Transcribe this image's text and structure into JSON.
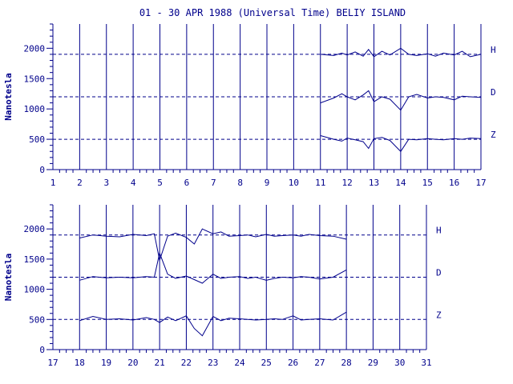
{
  "colors": {
    "ink": "#00008b",
    "background": "#ffffff"
  },
  "chart_data": [
    {
      "type": "line",
      "title": "01 - 30 APR 1988 (Universal Time) BELIY ISLAND",
      "xlabel": "",
      "ylabel": "Nanotesla",
      "xlim": [
        1,
        17
      ],
      "ylim": [
        0,
        2400
      ],
      "x_ticks": [
        1,
        2,
        3,
        4,
        5,
        6,
        7,
        8,
        9,
        10,
        11,
        12,
        13,
        14,
        15,
        16,
        17
      ],
      "y_ticks": [
        0,
        500,
        1000,
        1500,
        2000
      ],
      "grid": "vertical lines at each day",
      "baselines": [
        {
          "name": "H",
          "value": 1900
        },
        {
          "name": "D",
          "value": 1200
        },
        {
          "name": "Z",
          "value": 500
        }
      ],
      "series": [
        {
          "name": "H",
          "x": [
            11.0,
            11.5,
            11.8,
            12.0,
            12.3,
            12.6,
            12.8,
            13.0,
            13.3,
            13.6,
            14.0,
            14.3,
            14.6,
            15.0,
            15.3,
            15.6,
            16.0,
            16.3,
            16.6,
            17.0
          ],
          "values": [
            1900,
            1880,
            1920,
            1890,
            1940,
            1870,
            1980,
            1860,
            1950,
            1890,
            2000,
            1900,
            1880,
            1910,
            1870,
            1920,
            1890,
            1950,
            1860,
            1900
          ]
        },
        {
          "name": "D",
          "x": [
            11.0,
            11.5,
            11.8,
            12.0,
            12.3,
            12.6,
            12.8,
            13.0,
            13.3,
            13.6,
            14.0,
            14.3,
            14.6,
            15.0,
            15.3,
            15.6,
            16.0,
            16.3,
            16.6,
            17.0
          ],
          "values": [
            1100,
            1180,
            1250,
            1200,
            1150,
            1230,
            1300,
            1120,
            1200,
            1160,
            980,
            1200,
            1240,
            1180,
            1200,
            1190,
            1150,
            1210,
            1200,
            1190
          ]
        },
        {
          "name": "Z",
          "x": [
            11.0,
            11.5,
            11.8,
            12.0,
            12.3,
            12.6,
            12.8,
            13.0,
            13.3,
            13.6,
            14.0,
            14.3,
            14.6,
            15.0,
            15.3,
            15.6,
            16.0,
            16.3,
            16.6,
            17.0
          ],
          "values": [
            560,
            500,
            470,
            520,
            490,
            460,
            350,
            510,
            530,
            480,
            300,
            500,
            490,
            510,
            500,
            490,
            510,
            500,
            520,
            510
          ]
        }
      ]
    },
    {
      "type": "line",
      "title": "",
      "xlabel": "",
      "ylabel": "Nanotesla",
      "xlim": [
        17,
        31
      ],
      "ylim": [
        0,
        2400
      ],
      "x_ticks": [
        17,
        18,
        19,
        20,
        21,
        22,
        23,
        24,
        25,
        26,
        27,
        28,
        29,
        30,
        31
      ],
      "y_ticks": [
        0,
        500,
        1000,
        1500,
        2000
      ],
      "grid": "vertical lines at each day",
      "baselines": [
        {
          "name": "H",
          "value": 1900
        },
        {
          "name": "D",
          "value": 1200
        },
        {
          "name": "Z",
          "value": 500
        }
      ],
      "series": [
        {
          "name": "H",
          "x": [
            18.0,
            18.5,
            19.0,
            19.5,
            20.0,
            20.5,
            20.8,
            21.0,
            21.3,
            21.6,
            22.0,
            22.3,
            22.6,
            23.0,
            23.3,
            23.6,
            24.0,
            24.3,
            24.6,
            25.0,
            25.3,
            25.6,
            26.0,
            26.3,
            26.6,
            27.0,
            27.5,
            28.0
          ],
          "values": [
            1850,
            1900,
            1880,
            1870,
            1910,
            1890,
            1920,
            1480,
            1880,
            1930,
            1860,
            1750,
            2000,
            1920,
            1950,
            1880,
            1890,
            1900,
            1870,
            1910,
            1880,
            1890,
            1900,
            1880,
            1910,
            1890,
            1880,
            1830
          ]
        },
        {
          "name": "D",
          "x": [
            18.0,
            18.5,
            19.0,
            19.5,
            20.0,
            20.5,
            20.8,
            21.0,
            21.3,
            21.6,
            22.0,
            22.3,
            22.6,
            23.0,
            23.3,
            23.6,
            24.0,
            24.3,
            24.6,
            25.0,
            25.3,
            25.6,
            26.0,
            26.3,
            26.6,
            27.0,
            27.5,
            28.0
          ],
          "values": [
            1150,
            1210,
            1190,
            1200,
            1190,
            1210,
            1200,
            1600,
            1250,
            1180,
            1220,
            1160,
            1100,
            1250,
            1180,
            1200,
            1210,
            1180,
            1200,
            1150,
            1180,
            1200,
            1190,
            1210,
            1200,
            1170,
            1200,
            1320
          ]
        },
        {
          "name": "Z",
          "x": [
            18.0,
            18.5,
            19.0,
            19.5,
            20.0,
            20.5,
            20.8,
            21.0,
            21.3,
            21.6,
            22.0,
            22.3,
            22.6,
            23.0,
            23.3,
            23.6,
            24.0,
            24.3,
            24.6,
            25.0,
            25.3,
            25.6,
            26.0,
            26.3,
            26.6,
            27.0,
            27.5,
            28.0
          ],
          "values": [
            480,
            550,
            500,
            510,
            490,
            530,
            500,
            450,
            540,
            480,
            560,
            350,
            230,
            550,
            480,
            520,
            510,
            500,
            490,
            500,
            510,
            500,
            560,
            490,
            500,
            510,
            490,
            620
          ]
        }
      ]
    }
  ]
}
